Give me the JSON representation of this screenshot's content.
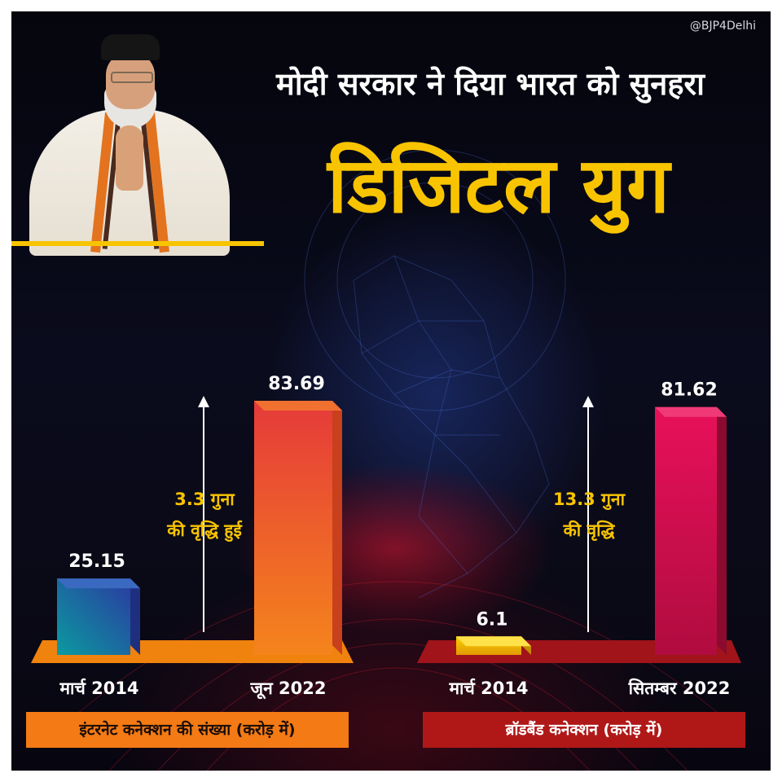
{
  "handle": "@BJP4Delhi",
  "headline": {
    "line1": "मोदी सरकार ने दिया भारत को सुनहरा",
    "line2": "डिजिटल युग"
  },
  "colors": {
    "accent_yellow": "#f8c400",
    "internet_bar_2014": [
      "#0b9aa0",
      "#2b3aa0"
    ],
    "internet_bar_2022": [
      "#f5841c",
      "#e53a3a"
    ],
    "broadband_bar_2014": [
      "#f8c800",
      "#e29a00"
    ],
    "broadband_bar_2022": [
      "#e0105a",
      "#a00c3a"
    ]
  },
  "chart_data": [
    {
      "type": "bar",
      "categories": [
        "मार्च 2014",
        "जून 2022"
      ],
      "values": [
        25.15,
        83.69
      ],
      "data_labels": [
        "25.15",
        "83.69"
      ],
      "annotation": [
        "3.3 गुना",
        "की वृद्धि हुई"
      ],
      "caption": "इंटरनेट कनेक्शन की संख्या (करोड़ में)",
      "ylim": [
        0,
        100
      ]
    },
    {
      "type": "bar",
      "categories": [
        "मार्च 2014",
        "सितम्बर 2022"
      ],
      "values": [
        6.1,
        81.62
      ],
      "data_labels": [
        "6.1",
        "81.62"
      ],
      "annotation": [
        "13.3 गुना",
        "की वृद्धि"
      ],
      "caption": "ब्रॉडबैंड कनेक्शन (करोड़ में)",
      "ylim": [
        0,
        100
      ]
    }
  ]
}
